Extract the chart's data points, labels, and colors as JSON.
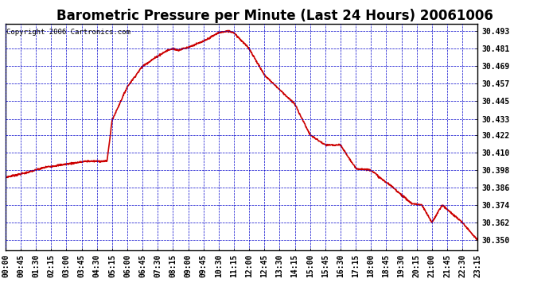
{
  "title": "Barometric Pressure per Minute (Last 24 Hours) 20061006",
  "copyright": "Copyright 2006 Cartronics.com",
  "line_color": "#cc0000",
  "bg_color": "#ffffff",
  "plot_bg_color": "#ffffff",
  "grid_color": "#0000cc",
  "text_color": "#000000",
  "yticks": [
    30.35,
    30.362,
    30.374,
    30.386,
    30.398,
    30.41,
    30.422,
    30.433,
    30.445,
    30.457,
    30.469,
    30.481,
    30.493
  ],
  "ylim": [
    30.343,
    30.498
  ],
  "xtick_labels": [
    "00:00",
    "00:45",
    "01:30",
    "02:15",
    "03:00",
    "03:45",
    "04:30",
    "05:15",
    "06:00",
    "06:45",
    "07:30",
    "08:15",
    "09:00",
    "09:45",
    "10:30",
    "11:15",
    "12:00",
    "12:45",
    "13:30",
    "14:15",
    "15:00",
    "15:45",
    "16:30",
    "17:15",
    "18:00",
    "18:45",
    "19:30",
    "20:15",
    "21:00",
    "21:45",
    "22:30",
    "23:15"
  ],
  "title_fontsize": 12,
  "copyright_fontsize": 6.5,
  "tick_fontsize": 7,
  "linewidth": 1.2,
  "keypoints_t": [
    0,
    60,
    120,
    180,
    240,
    270,
    300,
    315,
    360,
    405,
    450,
    480,
    495,
    510,
    540,
    585,
    630,
    660,
    675,
    720,
    765,
    810,
    855,
    900,
    945,
    990,
    1035,
    1080,
    1110,
    1140,
    1170,
    1200,
    1230,
    1260,
    1290,
    1320,
    1350,
    1395,
    1440
  ],
  "keypoints_p": [
    30.393,
    30.396,
    30.4,
    30.402,
    30.404,
    30.404,
    30.404,
    30.432,
    30.455,
    30.469,
    30.476,
    30.48,
    30.481,
    30.48,
    30.482,
    30.486,
    30.492,
    30.493,
    30.492,
    30.481,
    30.463,
    30.453,
    30.443,
    30.422,
    30.415,
    30.415,
    30.399,
    30.398,
    30.392,
    30.387,
    30.381,
    30.375,
    30.374,
    30.362,
    30.374,
    30.368,
    30.362,
    30.35,
    30.35
  ]
}
